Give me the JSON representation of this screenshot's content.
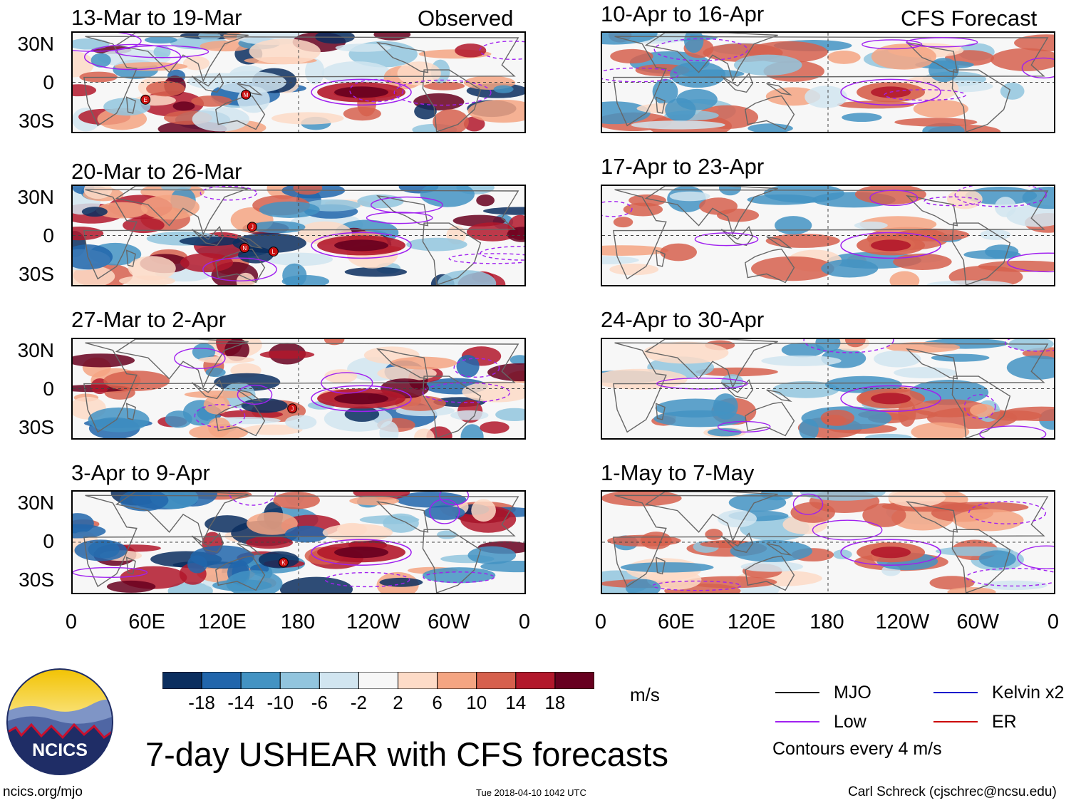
{
  "header": {
    "observed_label": "Observed",
    "forecast_label": "CFS Forecast"
  },
  "lat_labels": [
    "30N",
    "0",
    "30S"
  ],
  "lon_labels": [
    "0",
    "60E",
    "120E",
    "180",
    "120W",
    "60W",
    "0"
  ],
  "panels": [
    {
      "title": "13-Mar to 19-Mar",
      "section": "observed",
      "storms": [
        {
          "label": "E",
          "lon": 58,
          "lat": -14
        },
        {
          "label": "M",
          "lon": 138,
          "lat": -10
        }
      ]
    },
    {
      "title": "20-Mar to 26-Mar",
      "section": "observed",
      "storms": [
        {
          "label": "J",
          "lon": 143,
          "lat": 7
        },
        {
          "label": "N",
          "lon": 137,
          "lat": -10
        },
        {
          "label": "L",
          "lon": 160,
          "lat": -13
        }
      ]
    },
    {
      "title": "27-Mar to 2-Apr",
      "section": "observed",
      "storms": [
        {
          "label": "J",
          "lon": 175,
          "lat": -16
        }
      ]
    },
    {
      "title": "3-Apr to 9-Apr",
      "section": "observed",
      "storms": [
        {
          "label": "K",
          "lon": 168,
          "lat": -16
        }
      ]
    },
    {
      "title": "10-Apr to 16-Apr",
      "section": "forecast",
      "storms": []
    },
    {
      "title": "17-Apr to 23-Apr",
      "section": "forecast",
      "storms": []
    },
    {
      "title": "24-Apr to 30-Apr",
      "section": "forecast",
      "storms": []
    },
    {
      "title": "1-May to 7-May",
      "section": "forecast",
      "storms": []
    }
  ],
  "colorbar": {
    "colors": [
      "#0b2e5f",
      "#2166ac",
      "#4393c3",
      "#92c5de",
      "#d1e5f0",
      "#f7f7f7",
      "#fddbc7",
      "#f4a582",
      "#d6604d",
      "#b2182b",
      "#67001f"
    ],
    "labels": [
      "-18",
      "-14",
      "-10",
      "-6",
      "-2",
      "2",
      "6",
      "10",
      "14",
      "18"
    ],
    "units": "m/s"
  },
  "legend": {
    "items": [
      {
        "label": "MJO",
        "color": "#000000"
      },
      {
        "label": "Kelvin x2",
        "color": "#0000cc"
      },
      {
        "label": "Low",
        "color": "#a020f0"
      },
      {
        "label": "ER",
        "color": "#cc0000"
      }
    ],
    "note": "Contours every 4 m/s"
  },
  "logo_text": "NCICS",
  "main_title": "7-day USHEAR with CFS forecasts",
  "footer": {
    "url": "ncics.org/mjo",
    "timestamp": "Tue 2018-04-10 1042 UTC",
    "credit": "Carl Schreck (cjschrec@ncsu.edu)"
  }
}
